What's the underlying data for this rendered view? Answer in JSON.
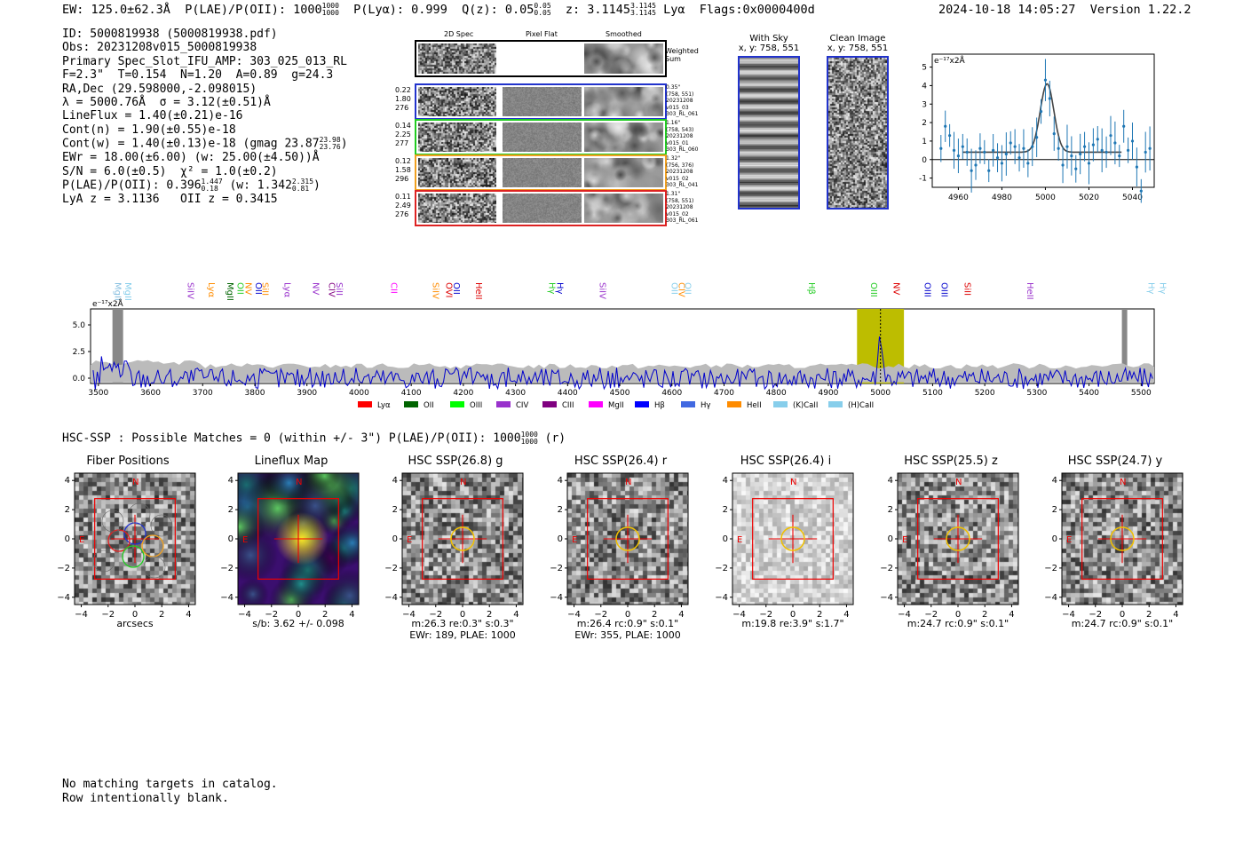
{
  "header": {
    "ew": "EW: 125.0±62.3Å",
    "plae_label": "P(LAE)/P(OII): 1000",
    "plae_sup": "1000",
    "plae_sub": "1000",
    "plya": "P(Lyα): 0.999",
    "qz_label": "Q(z): 0.05",
    "qz_sup": "0.05",
    "qz_sub": "0.05",
    "z_label": "z: 3.1145",
    "z_sup": "3.1145",
    "z_sub": "3.1145",
    "z_line": "Lyα",
    "flags": "Flags:0x0000400d",
    "datetime": "2024-10-18 14:05:27",
    "version": "Version 1.22.2"
  },
  "info": {
    "id": "ID: 5000819938 (5000819938.pdf)",
    "obs": "Obs: 20231208v015_5000819938",
    "primary": "Primary Spec_Slot_IFU_AMP: 303_025_013_RL",
    "fit": "F=2.3\"  T=0.154  N=1.20  A=0.89  g=24.3",
    "radec": "RA,Dec (29.598000,-2.098015)",
    "lambda": "λ = 5000.76Å  σ = 3.12(±0.51)Å",
    "lineflux": "LineFlux = 1.40(±0.21)e-16",
    "contn": "Cont(n) = 1.90(±0.55)e-18",
    "contw": "Cont(w) = 1.40(±0.13)e-18 (gmag 23.87",
    "contw_sup": "23.98",
    "contw_sub": "23.76",
    "ewr": "EWr = 18.00(±6.00) (w: 25.00(±4.50))Å",
    "sn": "S/N = 6.0(±0.5)  χ² = 1.0(±0.2)",
    "plae": "P(LAE)/P(OII): 0.396",
    "plae_sup": "1.447",
    "plae_sub": "0.18",
    "plae_w": "(w: 1.342",
    "plae_w_sup": "2.315",
    "plae_w_sub": "0.81",
    "lya": "LyA z = 3.1136   OII z = 0.3415"
  },
  "cutouts": {
    "headers": [
      "2D Spec",
      "Pixel Flat",
      "Smoothed"
    ],
    "weighted_label": "Weighted Sum",
    "rows": [
      {
        "left": [
          "0.22",
          "1.80",
          "276"
        ],
        "right": [
          "0.35\"",
          "(758, 551)",
          "20231208",
          "v015_03",
          "303_RL_061"
        ],
        "color": "#2233cc"
      },
      {
        "left": [
          "0.14",
          "2.25",
          "277"
        ],
        "right": [
          "1.16\"",
          "(758, 543)",
          "20231208",
          "v015_01",
          "303_RL_060"
        ],
        "color": "#22cc22"
      },
      {
        "left": [
          "0.12",
          "1.58",
          "296"
        ],
        "right": [
          "1.32\"",
          "(756, 376)",
          "20231208",
          "v015_02",
          "303_RL_041"
        ],
        "color": "#f0a020"
      },
      {
        "left": [
          "0.11",
          "2.49",
          "276"
        ],
        "right": [
          "1.31\"",
          "(758, 551)",
          "20231208",
          "v015_02",
          "303_RL_061"
        ],
        "color": "#dd2222"
      }
    ]
  },
  "with_sky": {
    "title": "With Sky",
    "coords": "x, y: 758, 551"
  },
  "clean_image": {
    "title": "Clean Image",
    "coords": "x, y: 758, 551"
  },
  "zoom_chart": {
    "ylabel": "e⁻¹⁷x2Å",
    "xticks": [
      "4960",
      "4980",
      "5000",
      "5020",
      "5040"
    ],
    "yticks": [
      "-1",
      "0",
      "1",
      "2",
      "3",
      "4",
      "5"
    ]
  },
  "spectrum": {
    "ylabel": "e⁻¹⁷x2Å",
    "xticks": [
      "3500",
      "3600",
      "3700",
      "3800",
      "3900",
      "4000",
      "4100",
      "4200",
      "4300",
      "4400",
      "4500",
      "4600",
      "4700",
      "4800",
      "4900",
      "5000",
      "5100",
      "5200",
      "5300",
      "5400",
      "5500"
    ],
    "yticks": [
      "0.0",
      "2.5",
      "5.0"
    ],
    "lines": [
      {
        "label": "MgII",
        "color": "#87bfe0"
      },
      {
        "label": "MgII",
        "color": "#87ceeb"
      },
      {
        "label": "SiIV",
        "color": "#9932cc"
      },
      {
        "label": "Lyα",
        "color": "#ff8c00"
      },
      {
        "label": "MgII",
        "color": "#006400"
      },
      {
        "label": "OII",
        "color": "#22cc22"
      },
      {
        "label": "NV",
        "color": "#ff8c00"
      },
      {
        "label": "OII",
        "color": "#0000cd"
      },
      {
        "label": "SiII",
        "color": "#ff8c00"
      },
      {
        "label": "Lyα",
        "color": "#9932cc"
      },
      {
        "label": "NV",
        "color": "#9932cc"
      },
      {
        "label": "CIV",
        "color": "#800080"
      },
      {
        "label": "SiII",
        "color": "#9932cc"
      },
      {
        "label": "CII",
        "color": "#ff00ff"
      },
      {
        "label": "SiIV",
        "color": "#ff8c00"
      },
      {
        "label": "OVI",
        "color": "#dd0000"
      },
      {
        "label": "OII",
        "color": "#0000cd"
      },
      {
        "label": "HeII",
        "color": "#dd0000"
      },
      {
        "label": "Hγ",
        "color": "#22cc22"
      },
      {
        "label": "Hγ",
        "color": "#0000cd"
      },
      {
        "label": "SiIV",
        "color": "#9932cc"
      },
      {
        "label": "OII",
        "color": "#87ceeb"
      },
      {
        "label": "CIV",
        "color": "#ff8c00"
      },
      {
        "label": "OII",
        "color": "#87ceeb"
      },
      {
        "label": "Hβ",
        "color": "#22cc22"
      },
      {
        "label": "OIII",
        "color": "#22cc22"
      },
      {
        "label": "NV",
        "color": "#dd0000"
      },
      {
        "label": "OIII",
        "color": "#0000cd"
      },
      {
        "label": "OIII",
        "color": "#0000cd"
      },
      {
        "label": "SiII",
        "color": "#dd0000"
      },
      {
        "label": "HeII",
        "color": "#9932cc"
      },
      {
        "label": "Hγ",
        "color": "#87ceeb"
      },
      {
        "label": "Hγ",
        "color": "#87ceeb"
      }
    ],
    "legend": [
      {
        "label": "Lyα",
        "color": "#ff0000"
      },
      {
        "label": "OII",
        "color": "#006400"
      },
      {
        "label": "OIII",
        "color": "#00ff00"
      },
      {
        "label": "CIV",
        "color": "#9932cc"
      },
      {
        "label": "CIII",
        "color": "#800080"
      },
      {
        "label": "MgII",
        "color": "#ff00ff"
      },
      {
        "label": "Hβ",
        "color": "#0000ff"
      },
      {
        "label": "Hγ",
        "color": "#4169e1"
      },
      {
        "label": "HeII",
        "color": "#ff8c00"
      },
      {
        "label": "(K)CaII",
        "color": "#87ceeb"
      },
      {
        "label": "(H)CaII",
        "color": "#87ceeb"
      }
    ]
  },
  "chart_data": [
    {
      "type": "scatter",
      "title": "",
      "xlabel": "",
      "ylabel": "e⁻¹⁷x2Å",
      "xlim": [
        4948,
        5050
      ],
      "ylim": [
        -1.5,
        5.7
      ],
      "x": [
        4952,
        4954,
        4956,
        4958,
        4960,
        4962,
        4964,
        4966,
        4968,
        4970,
        4972,
        4974,
        4976,
        4978,
        4980,
        4982,
        4984,
        4986,
        4988,
        4990,
        4992,
        4994,
        4996,
        4998,
        5000,
        5002,
        5004,
        5006,
        5008,
        5010,
        5012,
        5014,
        5016,
        5018,
        5020,
        5022,
        5024,
        5026,
        5028,
        5030,
        5032,
        5034,
        5036,
        5038,
        5040,
        5042,
        5044,
        5046,
        5048
      ],
      "values": [
        0.6,
        1.8,
        1.3,
        0.5,
        0.2,
        0.7,
        0.4,
        -0.6,
        -0.3,
        0.6,
        0.4,
        -0.6,
        0.5,
        0.1,
        -0.2,
        0.3,
        0.9,
        0.7,
        0.1,
        0.6,
        -0.2,
        0.7,
        1.2,
        2.6,
        4.3,
        3.3,
        1.4,
        0.6,
        -0.3,
        0.7,
        0.2,
        -0.5,
        0.3,
        0.7,
        -0.2,
        0.8,
        1.1,
        0.5,
        0.4,
        1.3,
        0.9,
        0.2,
        1.8,
        0.5,
        1.0,
        -0.4,
        -1.7,
        0.4,
        0.6
      ],
      "model": "gaussian peak ~4.1 at 5000.76, sigma 3.12, continuum ~0.4"
    },
    {
      "type": "line",
      "title": "",
      "xlabel": "",
      "ylabel": "e⁻¹⁷x2Å",
      "xlim": [
        3470,
        5530
      ],
      "ylim": [
        -0.5,
        6.5
      ],
      "highlight_range": [
        4955,
        5045
      ],
      "marker_x": 5000,
      "series": [
        {
          "name": "spectrum",
          "note": "noisy blue line, ~0 continuum, peak ~4.2 at 5000"
        }
      ]
    }
  ],
  "hsc": {
    "title": "HSC-SSP : Possible Matches = 0 (within +/- 3\")  P(LAE)/P(OII): 1000",
    "title_sup": "1000",
    "title_sub": "1000",
    "title_tail": "(r)",
    "panels": [
      {
        "title": "Fiber Positions",
        "cap1": "arcsecs",
        "cap2": ""
      },
      {
        "title": "Lineflux Map",
        "cap1": "s/b: 3.62 +/- 0.098",
        "cap2": ""
      },
      {
        "title": "HSC SSP(26.8) g",
        "cap1": "m:26.3  re:0.3\"  s:0.3\"",
        "cap2": "EWr: 189, PLAE: 1000"
      },
      {
        "title": "HSC SSP(26.4) r",
        "cap1": "m:26.4 rc:0.9\"  s:0.1\"",
        "cap2": "EWr: 355, PLAE: 1000"
      },
      {
        "title": "HSC SSP(26.4) i",
        "cap1": "m:19.8  re:3.9\"  s:1.7\"",
        "cap2": ""
      },
      {
        "title": "HSC SSP(25.5) z",
        "cap1": "m:24.7 rc:0.9\"  s:0.1\"",
        "cap2": ""
      },
      {
        "title": "HSC SSP(24.7) y",
        "cap1": "m:24.7 rc:0.9\"  s:0.1\"",
        "cap2": ""
      }
    ],
    "ticks": [
      "4",
      "2",
      "0",
      "−2",
      "−4"
    ],
    "xticks": [
      "−4",
      "−2",
      "0",
      "2",
      "4"
    ],
    "compass_n": "N",
    "compass_e": "E"
  },
  "footnote": {
    "line1": "No matching targets in catalog.",
    "line2": "Row intentionally blank."
  }
}
